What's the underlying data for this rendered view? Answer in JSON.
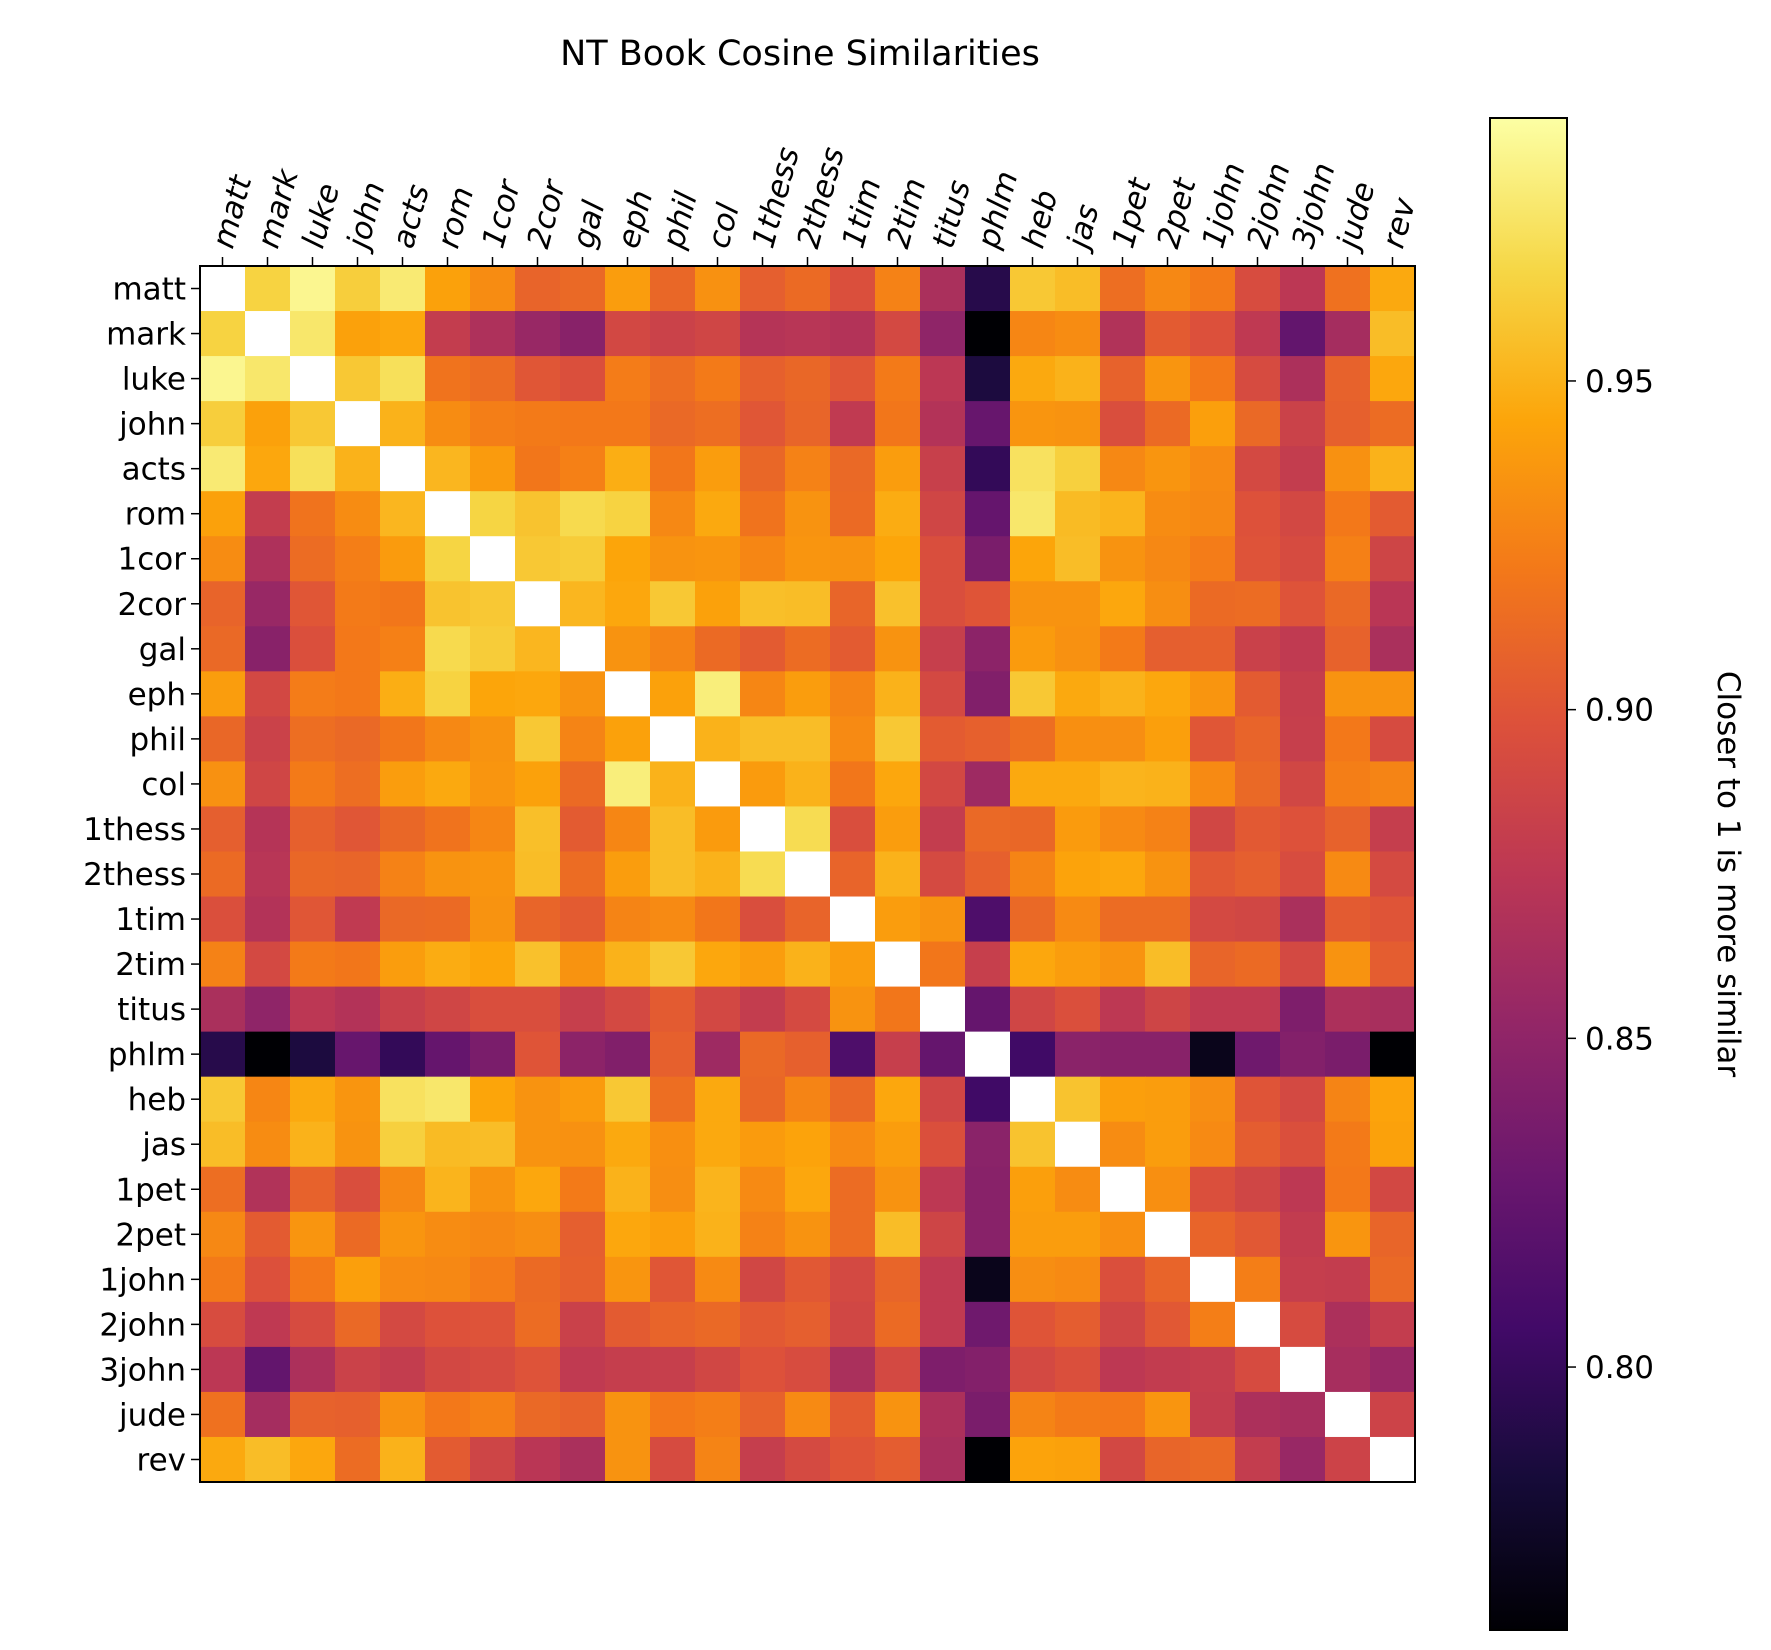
{
  "chart_data": {
    "type": "heatmap",
    "title": "NT Book Cosine Similarities",
    "x_labels": [
      "matt",
      "mark",
      "luke",
      "john",
      "acts",
      "rom",
      "1cor",
      "2cor",
      "gal",
      "eph",
      "phil",
      "col",
      "1thess",
      "2thess",
      "1tim",
      "2tim",
      "titus",
      "phlm",
      "heb",
      "jas",
      "1pet",
      "2pet",
      "1john",
      "2john",
      "3john",
      "jude",
      "rev"
    ],
    "y_labels": [
      "matt",
      "mark",
      "luke",
      "john",
      "acts",
      "rom",
      "1cor",
      "2cor",
      "gal",
      "eph",
      "phil",
      "col",
      "1thess",
      "2thess",
      "1tim",
      "2tim",
      "titus",
      "phlm",
      "heb",
      "jas",
      "1pet",
      "2pet",
      "1john",
      "2john",
      "3john",
      "jude",
      "rev"
    ],
    "colormap": "inferno",
    "value_range": [
      0.76,
      0.99
    ],
    "colorbar": {
      "label": "Closer to 1 is more similar",
      "ticks": [
        0.95,
        0.9,
        0.85,
        0.8
      ],
      "tick_labels": [
        "0.95",
        "0.90",
        "0.85",
        "0.80"
      ]
    },
    "values": [
      [
        1.0,
        0.965,
        0.985,
        0.963,
        0.978,
        0.942,
        0.931,
        0.909,
        0.912,
        0.94,
        0.911,
        0.934,
        0.906,
        0.913,
        0.896,
        0.926,
        0.865,
        0.792,
        0.96,
        0.955,
        0.915,
        0.929,
        0.922,
        0.894,
        0.875,
        0.917,
        0.946
      ],
      [
        0.965,
        1.0,
        0.976,
        0.942,
        0.945,
        0.88,
        0.867,
        0.855,
        0.846,
        0.89,
        0.885,
        0.888,
        0.871,
        0.873,
        0.87,
        0.891,
        0.85,
        0.76,
        0.928,
        0.931,
        0.869,
        0.904,
        0.897,
        0.877,
        0.825,
        0.862,
        0.955
      ],
      [
        0.985,
        0.976,
        1.0,
        0.96,
        0.972,
        0.918,
        0.914,
        0.901,
        0.896,
        0.923,
        0.915,
        0.922,
        0.907,
        0.911,
        0.901,
        0.922,
        0.875,
        0.786,
        0.946,
        0.95,
        0.908,
        0.936,
        0.921,
        0.893,
        0.866,
        0.908,
        0.945
      ],
      [
        0.963,
        0.942,
        0.96,
        1.0,
        0.95,
        0.931,
        0.924,
        0.922,
        0.921,
        0.921,
        0.912,
        0.915,
        0.901,
        0.91,
        0.878,
        0.92,
        0.87,
        0.827,
        0.936,
        0.935,
        0.895,
        0.913,
        0.941,
        0.912,
        0.885,
        0.907,
        0.914
      ],
      [
        0.978,
        0.945,
        0.972,
        0.95,
        1.0,
        0.952,
        0.939,
        0.92,
        0.925,
        0.948,
        0.92,
        0.94,
        0.911,
        0.926,
        0.912,
        0.94,
        0.883,
        0.798,
        0.973,
        0.964,
        0.929,
        0.936,
        0.93,
        0.891,
        0.88,
        0.934,
        0.95
      ],
      [
        0.942,
        0.88,
        0.918,
        0.931,
        0.952,
        1.0,
        0.966,
        0.958,
        0.969,
        0.965,
        0.929,
        0.946,
        0.918,
        0.935,
        0.913,
        0.947,
        0.888,
        0.826,
        0.976,
        0.954,
        0.951,
        0.931,
        0.929,
        0.898,
        0.89,
        0.921,
        0.904
      ],
      [
        0.931,
        0.867,
        0.914,
        0.924,
        0.939,
        0.966,
        1.0,
        0.96,
        0.962,
        0.944,
        0.935,
        0.936,
        0.928,
        0.936,
        0.935,
        0.944,
        0.895,
        0.838,
        0.944,
        0.955,
        0.935,
        0.929,
        0.923,
        0.899,
        0.893,
        0.925,
        0.887
      ],
      [
        0.909,
        0.855,
        0.901,
        0.922,
        0.92,
        0.958,
        0.96,
        1.0,
        0.952,
        0.945,
        0.96,
        0.942,
        0.956,
        0.955,
        0.91,
        0.957,
        0.895,
        0.9,
        0.935,
        0.935,
        0.945,
        0.932,
        0.913,
        0.914,
        0.899,
        0.912,
        0.874
      ],
      [
        0.912,
        0.846,
        0.896,
        0.921,
        0.925,
        0.969,
        0.962,
        0.952,
        1.0,
        0.935,
        0.927,
        0.913,
        0.904,
        0.914,
        0.904,
        0.935,
        0.882,
        0.848,
        0.939,
        0.934,
        0.922,
        0.906,
        0.907,
        0.884,
        0.878,
        0.908,
        0.865
      ],
      [
        0.94,
        0.89,
        0.923,
        0.921,
        0.948,
        0.965,
        0.944,
        0.945,
        0.935,
        1.0,
        0.942,
        0.98,
        0.928,
        0.94,
        0.927,
        0.95,
        0.891,
        0.842,
        0.96,
        0.946,
        0.95,
        0.945,
        0.936,
        0.904,
        0.881,
        0.935,
        0.935
      ],
      [
        0.911,
        0.885,
        0.915,
        0.912,
        0.92,
        0.929,
        0.935,
        0.96,
        0.927,
        0.942,
        1.0,
        0.95,
        0.955,
        0.955,
        0.93,
        0.96,
        0.904,
        0.907,
        0.915,
        0.933,
        0.932,
        0.941,
        0.901,
        0.909,
        0.882,
        0.921,
        0.893
      ],
      [
        0.934,
        0.888,
        0.922,
        0.915,
        0.94,
        0.946,
        0.936,
        0.942,
        0.913,
        0.98,
        0.95,
        1.0,
        0.939,
        0.95,
        0.92,
        0.945,
        0.89,
        0.858,
        0.946,
        0.946,
        0.951,
        0.95,
        0.93,
        0.912,
        0.889,
        0.924,
        0.927
      ],
      [
        0.906,
        0.871,
        0.907,
        0.901,
        0.911,
        0.918,
        0.928,
        0.956,
        0.904,
        0.928,
        0.955,
        0.939,
        1.0,
        0.97,
        0.895,
        0.94,
        0.88,
        0.912,
        0.911,
        0.939,
        0.93,
        0.926,
        0.889,
        0.903,
        0.898,
        0.908,
        0.881
      ],
      [
        0.913,
        0.873,
        0.911,
        0.91,
        0.926,
        0.935,
        0.936,
        0.955,
        0.914,
        0.94,
        0.955,
        0.95,
        0.97,
        1.0,
        0.909,
        0.95,
        0.892,
        0.907,
        0.927,
        0.943,
        0.945,
        0.935,
        0.902,
        0.906,
        0.894,
        0.93,
        0.892
      ],
      [
        0.896,
        0.87,
        0.901,
        0.878,
        0.912,
        0.913,
        0.935,
        0.91,
        0.904,
        0.927,
        0.93,
        0.92,
        0.895,
        0.909,
        1.0,
        0.94,
        0.935,
        0.813,
        0.912,
        0.93,
        0.914,
        0.914,
        0.891,
        0.889,
        0.865,
        0.904,
        0.9
      ],
      [
        0.926,
        0.891,
        0.922,
        0.92,
        0.94,
        0.947,
        0.944,
        0.957,
        0.935,
        0.95,
        0.96,
        0.945,
        0.94,
        0.95,
        0.94,
        1.0,
        0.92,
        0.882,
        0.945,
        0.94,
        0.935,
        0.955,
        0.91,
        0.913,
        0.891,
        0.935,
        0.905
      ],
      [
        0.865,
        0.85,
        0.875,
        0.87,
        0.883,
        0.888,
        0.895,
        0.895,
        0.882,
        0.891,
        0.904,
        0.89,
        0.88,
        0.892,
        0.935,
        0.92,
        1.0,
        0.826,
        0.888,
        0.896,
        0.876,
        0.887,
        0.878,
        0.878,
        0.84,
        0.866,
        0.864
      ],
      [
        0.792,
        0.76,
        0.786,
        0.827,
        0.798,
        0.826,
        0.838,
        0.9,
        0.848,
        0.842,
        0.907,
        0.858,
        0.912,
        0.907,
        0.813,
        0.882,
        0.826,
        1.0,
        0.805,
        0.847,
        0.846,
        0.846,
        0.77,
        0.832,
        0.843,
        0.838,
        0.76
      ],
      [
        0.96,
        0.928,
        0.946,
        0.936,
        0.973,
        0.976,
        0.944,
        0.935,
        0.939,
        0.96,
        0.915,
        0.946,
        0.911,
        0.927,
        0.912,
        0.945,
        0.888,
        0.805,
        1.0,
        0.958,
        0.941,
        0.94,
        0.932,
        0.9,
        0.891,
        0.927,
        0.943
      ],
      [
        0.955,
        0.931,
        0.95,
        0.935,
        0.964,
        0.954,
        0.955,
        0.935,
        0.934,
        0.946,
        0.933,
        0.946,
        0.939,
        0.943,
        0.93,
        0.94,
        0.896,
        0.847,
        0.958,
        1.0,
        0.931,
        0.94,
        0.93,
        0.905,
        0.896,
        0.922,
        0.942
      ],
      [
        0.915,
        0.869,
        0.908,
        0.895,
        0.929,
        0.951,
        0.935,
        0.945,
        0.922,
        0.95,
        0.932,
        0.951,
        0.93,
        0.945,
        0.914,
        0.935,
        0.876,
        0.846,
        0.941,
        0.931,
        1.0,
        0.933,
        0.896,
        0.888,
        0.876,
        0.921,
        0.89
      ],
      [
        0.929,
        0.904,
        0.936,
        0.913,
        0.936,
        0.931,
        0.929,
        0.932,
        0.906,
        0.945,
        0.941,
        0.95,
        0.926,
        0.935,
        0.914,
        0.955,
        0.887,
        0.846,
        0.94,
        0.94,
        0.933,
        1.0,
        0.909,
        0.902,
        0.879,
        0.936,
        0.91
      ],
      [
        0.922,
        0.897,
        0.921,
        0.941,
        0.93,
        0.929,
        0.923,
        0.913,
        0.907,
        0.936,
        0.901,
        0.93,
        0.889,
        0.902,
        0.891,
        0.91,
        0.878,
        0.77,
        0.932,
        0.93,
        0.896,
        0.909,
        1.0,
        0.924,
        0.881,
        0.88,
        0.912
      ],
      [
        0.894,
        0.877,
        0.893,
        0.912,
        0.891,
        0.898,
        0.899,
        0.914,
        0.884,
        0.904,
        0.909,
        0.912,
        0.903,
        0.906,
        0.889,
        0.913,
        0.878,
        0.832,
        0.9,
        0.905,
        0.888,
        0.902,
        0.924,
        1.0,
        0.893,
        0.866,
        0.88
      ],
      [
        0.875,
        0.825,
        0.866,
        0.885,
        0.88,
        0.89,
        0.893,
        0.899,
        0.878,
        0.881,
        0.882,
        0.889,
        0.898,
        0.894,
        0.865,
        0.891,
        0.84,
        0.843,
        0.891,
        0.896,
        0.876,
        0.879,
        0.881,
        0.893,
        1.0,
        0.863,
        0.855
      ],
      [
        0.917,
        0.862,
        0.908,
        0.907,
        0.934,
        0.921,
        0.925,
        0.912,
        0.908,
        0.935,
        0.921,
        0.924,
        0.908,
        0.93,
        0.904,
        0.935,
        0.866,
        0.838,
        0.927,
        0.922,
        0.921,
        0.936,
        0.88,
        0.866,
        0.863,
        1.0,
        0.886
      ],
      [
        0.946,
        0.955,
        0.945,
        0.914,
        0.95,
        0.904,
        0.887,
        0.874,
        0.865,
        0.935,
        0.893,
        0.927,
        0.881,
        0.892,
        0.9,
        0.905,
        0.864,
        0.76,
        0.943,
        0.942,
        0.89,
        0.91,
        0.912,
        0.88,
        0.855,
        0.886,
        1.0
      ]
    ]
  }
}
